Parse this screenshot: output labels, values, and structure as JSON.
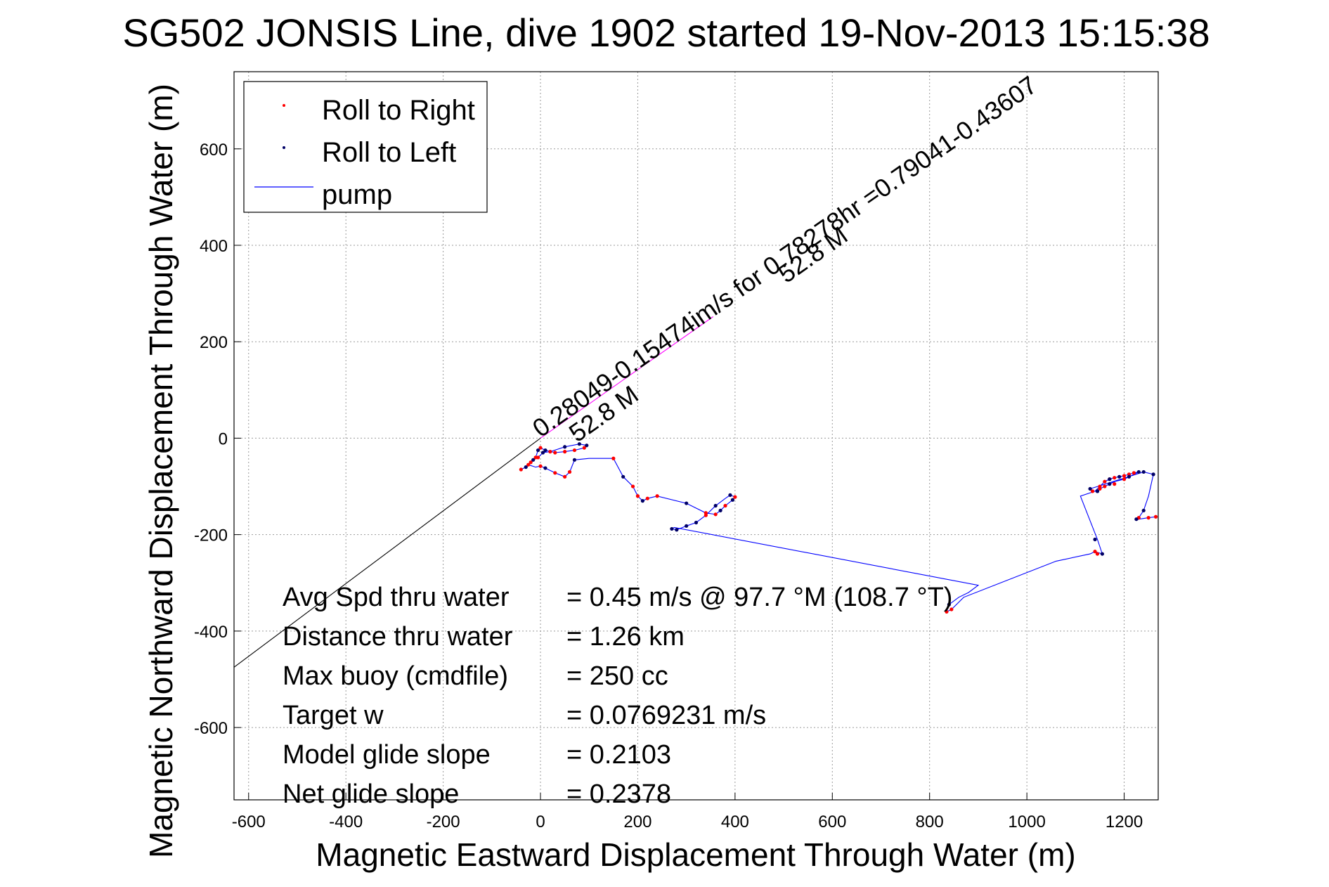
{
  "chart_data": {
    "type": "line",
    "title": "SG502 JONSIS Line, dive 1902 started 19-Nov-2013 15:15:38",
    "xlabel": "Magnetic Eastward Displacement Through Water (m)",
    "ylabel": "Magnetic Northward Displacement Through Water (m)",
    "xlim": [
      -630,
      1270
    ],
    "ylim": [
      -750,
      760
    ],
    "grid": true,
    "legend_position": "top-left",
    "x_ticks": [
      -600,
      -400,
      -200,
      0,
      200,
      400,
      600,
      800,
      1000,
      1200
    ],
    "y_ticks": [
      -600,
      -400,
      -200,
      0,
      200,
      400,
      600
    ],
    "legend": [
      {
        "label": "Roll to Right",
        "marker": "dot",
        "color": "#ff0000"
      },
      {
        "label": "Roll to Left",
        "marker": "dot",
        "color": "#000066"
      },
      {
        "label": "pump",
        "marker": "line",
        "color": "#0000ff"
      }
    ],
    "series": [
      {
        "name": "pump",
        "color": "#0000ff",
        "x": [
          -40,
          -30,
          -20,
          -10,
          -5,
          0,
          10,
          30,
          50,
          70,
          90,
          95,
          80,
          50,
          20,
          5,
          -5,
          -15,
          -25,
          -10,
          0,
          10,
          30,
          50,
          60,
          70,
          100,
          150,
          170,
          190,
          200,
          210,
          220,
          240,
          300,
          340,
          360,
          370,
          380,
          395,
          400,
          390,
          380,
          360,
          340,
          320,
          300,
          280,
          270,
          275,
          900,
          880,
          860,
          840,
          835,
          845,
          870,
          1060,
          1130,
          1140,
          1155,
          1145,
          1110,
          1140,
          1150,
          1160,
          1170,
          1180,
          1190,
          1200,
          1210,
          1220,
          1230,
          1220,
          1210,
          1200,
          1180,
          1170,
          1160,
          1150,
          1145,
          1135,
          1130,
          1240,
          1260,
          1250,
          1240,
          1230,
          1225,
          1230,
          1250,
          1265
        ],
        "y": [
          -65,
          -60,
          -50,
          -40,
          -25,
          -20,
          -25,
          -30,
          -28,
          -25,
          -20,
          -15,
          -12,
          -18,
          -28,
          -30,
          -40,
          -45,
          -55,
          -60,
          -58,
          -62,
          -72,
          -80,
          -70,
          -45,
          -42,
          -42,
          -80,
          -100,
          -120,
          -130,
          -125,
          -120,
          -135,
          -155,
          -158,
          -150,
          -140,
          -128,
          -122,
          -118,
          -125,
          -140,
          -160,
          -175,
          -182,
          -190,
          -188,
          -185,
          -305,
          -320,
          -330,
          -345,
          -360,
          -355,
          -330,
          -255,
          -240,
          -235,
          -240,
          -210,
          -120,
          -110,
          -100,
          -90,
          -85,
          -82,
          -80,
          -78,
          -75,
          -72,
          -70,
          -75,
          -80,
          -85,
          -90,
          -95,
          -100,
          -105,
          -110,
          -110,
          -105,
          -70,
          -75,
          -120,
          -150,
          -165,
          -170,
          -168,
          -165,
          -163
        ]
      },
      {
        "name": "Roll to Right",
        "color": "#ff0000",
        "x": [
          -40,
          -20,
          -10,
          0,
          30,
          50,
          70,
          90,
          20,
          -5,
          -25,
          0,
          30,
          50,
          60,
          150,
          190,
          200,
          220,
          240,
          340,
          360,
          380,
          400,
          340,
          835,
          845,
          1140,
          1145,
          1150,
          1160,
          1170,
          1180,
          1200,
          1210,
          1220,
          1200,
          1180,
          1160,
          1150,
          1135,
          1230,
          1250,
          1265
        ],
        "y": [
          -65,
          -50,
          -40,
          -20,
          -30,
          -28,
          -25,
          -20,
          -28,
          -40,
          -55,
          -58,
          -72,
          -80,
          -70,
          -42,
          -100,
          -120,
          -125,
          -120,
          -155,
          -158,
          -140,
          -122,
          -160,
          -360,
          -355,
          -235,
          -240,
          -100,
          -90,
          -85,
          -82,
          -78,
          -75,
          -72,
          -85,
          -95,
          -100,
          -105,
          -110,
          -165,
          -165,
          -163
        ]
      },
      {
        "name": "Roll to Left",
        "color": "#000066",
        "x": [
          -30,
          -5,
          10,
          95,
          80,
          50,
          5,
          -15,
          10,
          70,
          170,
          210,
          300,
          370,
          395,
          390,
          360,
          320,
          300,
          280,
          270,
          840,
          1140,
          1155,
          1145,
          1170,
          1190,
          1230,
          1210,
          1170,
          1145,
          1130,
          1240,
          1260,
          1240,
          1225
        ],
        "y": [
          -60,
          -25,
          -25,
          -15,
          -12,
          -18,
          -30,
          -45,
          -62,
          -45,
          -80,
          -130,
          -135,
          -150,
          -128,
          -118,
          -140,
          -175,
          -182,
          -190,
          -188,
          -345,
          -210,
          -240,
          -110,
          -85,
          -80,
          -70,
          -80,
          -95,
          -110,
          -105,
          -70,
          -75,
          -150,
          -168
        ]
      },
      {
        "name": "current",
        "color": "#ff00ff",
        "x": [
          0,
          355
        ],
        "y": [
          0,
          252
        ]
      },
      {
        "name": "heading",
        "color": "#000000",
        "x": [
          -630,
          0
        ],
        "y": [
          -475,
          0
        ]
      }
    ],
    "annotations": [
      {
        "text": "0.28049-0.15474im/s for 0.78278hr =0.79041-0.43607",
        "x": 0,
        "y": 0,
        "rotation": -35
      },
      {
        "text": "52.8 M",
        "x": 75,
        "y": -10,
        "rotation": -35
      },
      {
        "text": "52.8 M",
        "x": 505,
        "y": 320,
        "rotation": -35
      }
    ],
    "stats": [
      {
        "label": "Avg Spd thru water",
        "value": "=  0.45 m/s @  97.7 °M (108.7 °T)"
      },
      {
        "label": "Distance thru water",
        "value": "=  1.26 km"
      },
      {
        "label": "Max buoy (cmdfile)",
        "value": "= 250 cc"
      },
      {
        "label": "Target w",
        "value": "= 0.0769231 m/s"
      },
      {
        "label": "Model glide slope",
        "value": "= 0.2103"
      },
      {
        "label": "Net glide slope",
        "value": "= 0.2378"
      }
    ]
  }
}
